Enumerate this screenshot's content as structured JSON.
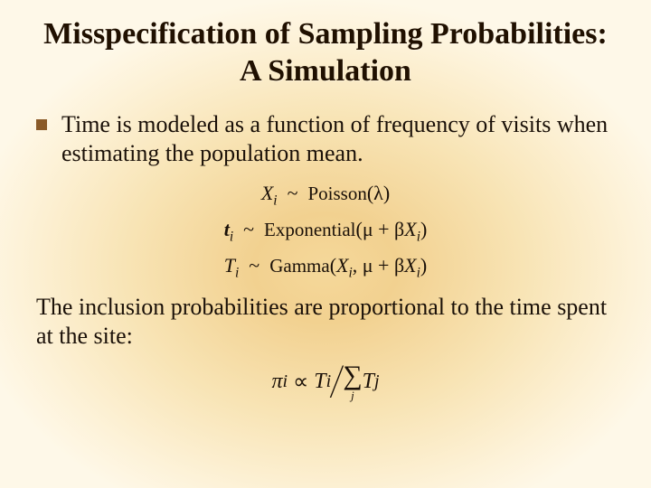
{
  "title": "Misspecification of Sampling Probabilities: A Simulation",
  "bullet1": "Time is modeled as a function of frequency of visits when estimating the population mean.",
  "eq1": {
    "lhs": "X",
    "lhs_sub": "i",
    "tilde": "~",
    "dist": "Poisson",
    "args": "(λ)"
  },
  "eq2": {
    "lhs": "t",
    "lhs_sub": "i",
    "tilde": "~",
    "dist": "Exponential",
    "args_pre": "(μ + β",
    "args_x": "X",
    "args_xsub": "i",
    "args_post": ")"
  },
  "eq3": {
    "lhs": "T",
    "lhs_sub": "i",
    "tilde": "~",
    "dist": "Gamma",
    "args_pre": "(",
    "args_x1": "X",
    "args_x1sub": "i",
    "args_mid": ", μ + β",
    "args_x2": "X",
    "args_x2sub": "i",
    "args_post": ")"
  },
  "body2": "The inclusion probabilities are proportional to the time spent at the site:",
  "finaleq": {
    "pi": "π",
    "pi_sub": "i",
    "prop": "∝",
    "num": "T",
    "num_sub": "i",
    "sigma": "∑",
    "sigma_sub": "j",
    "den": "T",
    "den_sub": "j"
  },
  "colors": {
    "bullet": "#8a5a28",
    "text": "#1a1008",
    "bg_inner": "#f5d89a",
    "bg_outer": "#fef8e8"
  },
  "fonts": {
    "title_size": 34,
    "body_size": 26,
    "eq_size": 22
  }
}
